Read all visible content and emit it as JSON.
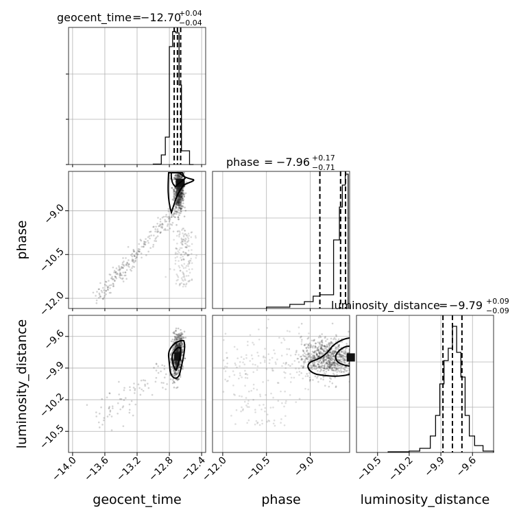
{
  "chart_data": {
    "type": "corner",
    "parameters": [
      {
        "name": "geocent_time",
        "median": "−12.70",
        "plus": "+0.04",
        "minus": "−0.04",
        "lim": [
          -14.05,
          -12.35
        ],
        "ticks": [
          -14.0,
          -13.6,
          -13.2,
          -12.8,
          -12.4
        ],
        "tick_labels": [
          "−14.0",
          "−13.6",
          "−13.2",
          "−12.8",
          "−12.4"
        ],
        "quantiles": [
          -12.74,
          -12.7,
          -12.66
        ],
        "hist": {
          "edges": [
            -13.0,
            -12.9,
            -12.85,
            -12.8,
            -12.76,
            -12.72,
            -12.68,
            -12.65,
            -12.6,
            -12.55,
            -12.5
          ],
          "counts": [
            0.003,
            0.07,
            0.2,
            0.86,
            0.97,
            0.96,
            0.58,
            0.1,
            0.1,
            0.0
          ]
        }
      },
      {
        "name": "phase",
        "median": "−7.96",
        "plus": "+0.17",
        "minus": "−0.71",
        "lim": [
          -12.35,
          -7.65
        ],
        "ticks": [
          -12.0,
          -10.5,
          -9.0
        ],
        "tick_labels": [
          "−12.0",
          "−10.5",
          "−9.0"
        ],
        "quantiles": [
          -8.67,
          -7.96,
          -7.79
        ],
        "hist": {
          "edges": [
            -10.5,
            -9.7,
            -9.2,
            -8.9,
            -8.67,
            -8.2,
            -8.0,
            -7.9,
            -7.8,
            -7.7
          ],
          "counts": [
            0.01,
            0.03,
            0.05,
            0.09,
            0.1,
            0.5,
            0.74,
            0.9,
            0.98
          ]
        }
      },
      {
        "name": "luminosity_distance",
        "median": "−9.79",
        "plus": "+0.09",
        "minus": "−0.09",
        "lim": [
          -10.7,
          -9.4
        ],
        "ticks": [
          -10.5,
          -10.2,
          -9.9,
          -9.6
        ],
        "tick_labels": [
          "−10.5",
          "−10.2",
          "−9.9",
          "−9.6"
        ],
        "quantiles": [
          -9.88,
          -9.79,
          -9.7
        ],
        "hist": {
          "edges": [
            -10.4,
            -10.3,
            -10.2,
            -10.1,
            -10.0,
            -9.95,
            -9.91,
            -9.87,
            -9.83,
            -9.79,
            -9.75,
            -9.71,
            -9.67,
            -9.63,
            -9.58,
            -9.5,
            -9.4
          ],
          "counts": [
            0.005,
            0.005,
            0.01,
            0.03,
            0.12,
            0.27,
            0.5,
            0.67,
            0.76,
            0.92,
            0.73,
            0.55,
            0.27,
            0.12,
            0.05,
            0.01
          ]
        }
      }
    ],
    "hist_ylim": [
      0,
      1.0
    ],
    "hist_ytick_fracs": [
      0.0,
      0.33,
      0.66
    ],
    "contour_levels": 2,
    "grid": true
  }
}
